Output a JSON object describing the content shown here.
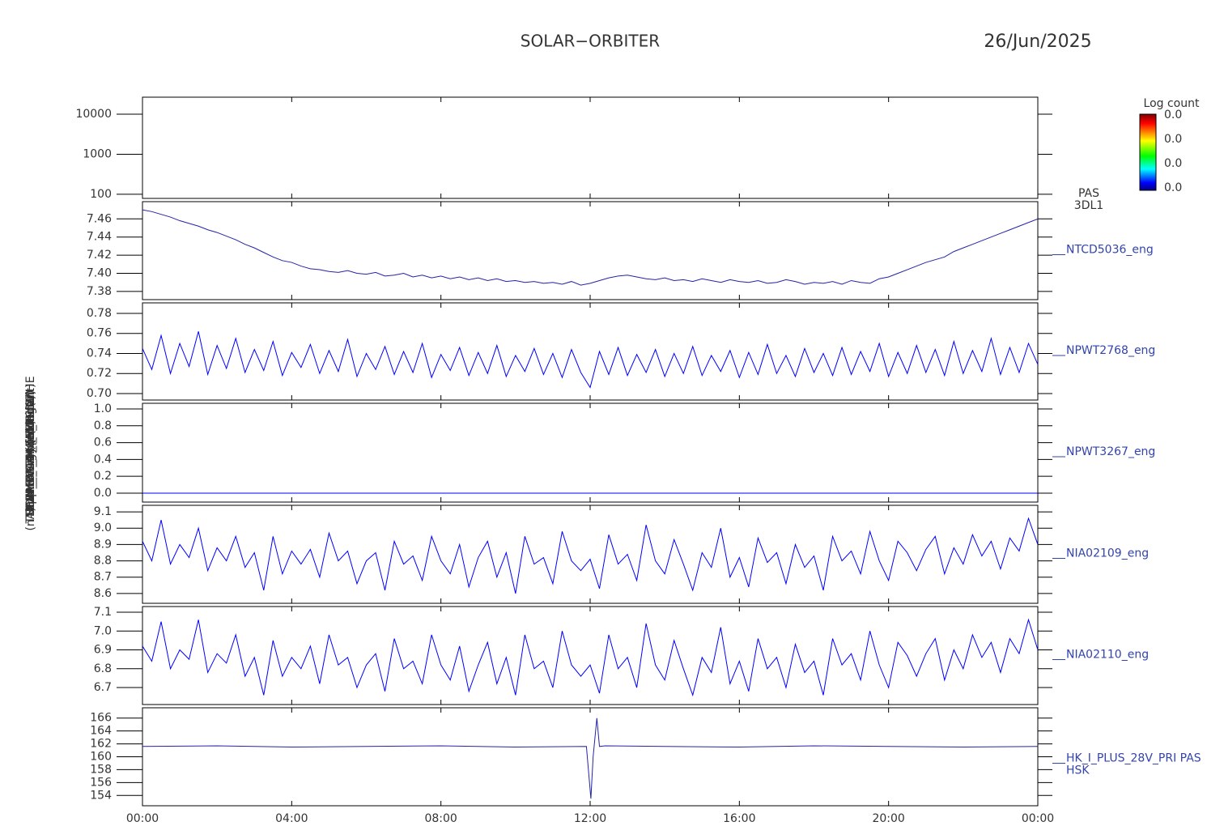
{
  "title": "SOLAR−ORBITER",
  "date": "26/Jun/2025",
  "colorbar": {
    "label": "Log count",
    "tick_labels": [
      "0.0",
      "0.0",
      "0.0",
      "0.0"
    ]
  },
  "xticks": [
    {
      "value": 0,
      "label": "00:00"
    },
    {
      "value": 4,
      "label": "04:00"
    },
    {
      "value": 8,
      "label": "08:00"
    },
    {
      "value": 12,
      "label": "12:00"
    },
    {
      "value": 16,
      "label": "16:00"
    },
    {
      "value": 20,
      "label": "20:00"
    },
    {
      "value": 24,
      "label": "00:00"
    }
  ],
  "xlim": [
    0,
    24
  ],
  "chart_data": [
    {
      "type": "spectrogram",
      "instrument": "PAS",
      "product": "3DL1",
      "ylabel": "Energy (eV)",
      "log_scale": true,
      "ylim": [
        79,
        26600
      ],
      "yticks": [
        100,
        1000,
        10000
      ]
    },
    {
      "type": "line",
      "ylabel": "Approx Temp (DegC)",
      "ylim": [
        7.371,
        7.479
      ],
      "yticks": [
        7.38,
        {
          "value": 7.4,
          "label": "7.40"
        },
        7.42,
        7.44,
        7.46
      ],
      "x": [
        0,
        0.25,
        0.5,
        0.75,
        1,
        1.25,
        1.5,
        1.75,
        2,
        2.25,
        2.5,
        2.75,
        3,
        3.25,
        3.5,
        3.75,
        4,
        4.25,
        4.5,
        4.75,
        5,
        5.25,
        5.5,
        5.75,
        6,
        6.25,
        6.5,
        6.75,
        7,
        7.25,
        7.5,
        7.75,
        8,
        8.25,
        8.5,
        8.75,
        9,
        9.25,
        9.5,
        9.75,
        10,
        10.25,
        10.5,
        10.75,
        11,
        11.25,
        11.5,
        11.75,
        12,
        12.25,
        12.5,
        12.75,
        13,
        13.25,
        13.5,
        13.75,
        14,
        14.25,
        14.5,
        14.75,
        15,
        15.25,
        15.5,
        15.75,
        16,
        16.25,
        16.5,
        16.75,
        17,
        17.25,
        17.5,
        17.75,
        18,
        18.25,
        18.5,
        18.75,
        19,
        19.25,
        19.5,
        19.75,
        20,
        20.25,
        20.5,
        20.75,
        21,
        21.25,
        21.5,
        21.75,
        22,
        22.25,
        22.5,
        22.75,
        23,
        23.25,
        23.5,
        23.75,
        24
      ],
      "series": [
        {
          "name": "NTCD5036_eng",
          "color": "#2323a8",
          "values": [
            7.47,
            7.468,
            7.465,
            7.462,
            7.458,
            7.455,
            7.452,
            7.448,
            7.445,
            7.441,
            7.437,
            7.432,
            7.428,
            7.423,
            7.418,
            7.414,
            7.412,
            7.408,
            7.405,
            7.404,
            7.402,
            7.401,
            7.403,
            7.4,
            7.399,
            7.401,
            7.397,
            7.398,
            7.4,
            7.396,
            7.398,
            7.395,
            7.397,
            7.394,
            7.396,
            7.393,
            7.395,
            7.392,
            7.394,
            7.391,
            7.392,
            7.39,
            7.391,
            7.389,
            7.39,
            7.388,
            7.391,
            7.387,
            7.389,
            7.392,
            7.395,
            7.397,
            7.398,
            7.396,
            7.394,
            7.393,
            7.395,
            7.392,
            7.393,
            7.391,
            7.394,
            7.392,
            7.39,
            7.393,
            7.391,
            7.39,
            7.392,
            7.389,
            7.39,
            7.393,
            7.391,
            7.388,
            7.39,
            7.389,
            7.391,
            7.388,
            7.392,
            7.39,
            7.389,
            7.394,
            7.396,
            7.4,
            7.404,
            7.408,
            7.412,
            7.415,
            7.418,
            7.424,
            7.428,
            7.432,
            7.436,
            7.44,
            7.444,
            7.448,
            7.452,
            7.456,
            7.46
          ]
        }
      ]
    },
    {
      "type": "line",
      "ylabel": "SWA-TWTA_TEMP (V)",
      "ylim": [
        0.6935,
        0.7905
      ],
      "yticks": [
        {
          "value": 0.7,
          "label": "0.70"
        },
        0.72,
        0.74,
        0.76,
        0.78
      ],
      "x": [
        0,
        0.25,
        0.5,
        0.75,
        1,
        1.25,
        1.5,
        1.75,
        2,
        2.25,
        2.5,
        2.75,
        3,
        3.25,
        3.5,
        3.75,
        4,
        4.25,
        4.5,
        4.75,
        5,
        5.25,
        5.5,
        5.75,
        6,
        6.25,
        6.5,
        6.75,
        7,
        7.25,
        7.5,
        7.75,
        8,
        8.25,
        8.5,
        8.75,
        9,
        9.25,
        9.5,
        9.75,
        10,
        10.25,
        10.5,
        10.75,
        11,
        11.25,
        11.5,
        11.75,
        12,
        12.25,
        12.5,
        12.75,
        13,
        13.25,
        13.5,
        13.75,
        14,
        14.25,
        14.5,
        14.75,
        15,
        15.25,
        15.5,
        15.75,
        16,
        16.25,
        16.5,
        16.75,
        17,
        17.25,
        17.5,
        17.75,
        18,
        18.25,
        18.5,
        18.75,
        19,
        19.25,
        19.5,
        19.75,
        20,
        20.25,
        20.5,
        20.75,
        21,
        21.25,
        21.5,
        21.75,
        22,
        22.25,
        22.5,
        22.75,
        23,
        23.25,
        23.5,
        23.75,
        24
      ],
      "series": [
        {
          "name": "NPWT2768_eng",
          "color": "#0000ff",
          "values": [
            0.745,
            0.724,
            0.758,
            0.72,
            0.75,
            0.727,
            0.762,
            0.719,
            0.748,
            0.725,
            0.755,
            0.721,
            0.744,
            0.723,
            0.752,
            0.718,
            0.741,
            0.726,
            0.749,
            0.72,
            0.743,
            0.722,
            0.754,
            0.717,
            0.74,
            0.724,
            0.747,
            0.719,
            0.742,
            0.721,
            0.75,
            0.716,
            0.739,
            0.723,
            0.746,
            0.718,
            0.741,
            0.72,
            0.748,
            0.717,
            0.738,
            0.722,
            0.745,
            0.719,
            0.74,
            0.716,
            0.744,
            0.721,
            0.706,
            0.742,
            0.719,
            0.746,
            0.718,
            0.739,
            0.721,
            0.744,
            0.717,
            0.74,
            0.72,
            0.747,
            0.718,
            0.738,
            0.722,
            0.743,
            0.716,
            0.741,
            0.719,
            0.749,
            0.72,
            0.738,
            0.717,
            0.745,
            0.721,
            0.74,
            0.718,
            0.746,
            0.719,
            0.742,
            0.722,
            0.75,
            0.717,
            0.741,
            0.72,
            0.748,
            0.721,
            0.744,
            0.718,
            0.752,
            0.72,
            0.743,
            0.722,
            0.755,
            0.719,
            0.746,
            0.721,
            0.75,
            0.729
          ]
        }
      ]
    },
    {
      "type": "line",
      "ylabel": "SWA-EAS_HV_MON (V)",
      "ylim": [
        -0.106,
        1.067
      ],
      "yticks": [
        {
          "value": 0,
          "label": "0.0"
        },
        0.2,
        0.4,
        0.6,
        0.8,
        {
          "value": 1,
          "label": "1.0"
        }
      ],
      "x": [
        0,
        24
      ],
      "series": [
        {
          "name": "NPWT3267_eng",
          "color": "#0000ff",
          "values": [
            0,
            0
          ]
        }
      ]
    },
    {
      "type": "line",
      "ylabel": "THERM_CA4 (nominal)",
      "ylim": [
        8.54,
        9.14
      ],
      "yticks": [
        8.6,
        8.7,
        8.8,
        8.9,
        {
          "value": 9,
          "label": "9.0"
        },
        9.1
      ],
      "x": [
        0,
        0.25,
        0.5,
        0.75,
        1,
        1.25,
        1.5,
        1.75,
        2,
        2.25,
        2.5,
        2.75,
        3,
        3.25,
        3.5,
        3.75,
        4,
        4.25,
        4.5,
        4.75,
        5,
        5.25,
        5.5,
        5.75,
        6,
        6.25,
        6.5,
        6.75,
        7,
        7.25,
        7.5,
        7.75,
        8,
        8.25,
        8.5,
        8.75,
        9,
        9.25,
        9.5,
        9.75,
        10,
        10.25,
        10.5,
        10.75,
        11,
        11.25,
        11.5,
        11.75,
        12,
        12.25,
        12.5,
        12.75,
        13,
        13.25,
        13.5,
        13.75,
        14,
        14.25,
        14.5,
        14.75,
        15,
        15.25,
        15.5,
        15.75,
        16,
        16.25,
        16.5,
        16.75,
        17,
        17.25,
        17.5,
        17.75,
        18,
        18.25,
        18.5,
        18.75,
        19,
        19.25,
        19.5,
        19.75,
        20,
        20.25,
        20.5,
        20.75,
        21,
        21.25,
        21.5,
        21.75,
        22,
        22.25,
        22.5,
        22.75,
        23,
        23.25,
        23.5,
        23.75,
        24
      ],
      "series": [
        {
          "name": "NIA02109_eng",
          "color": "#0000ff",
          "values": [
            8.92,
            8.8,
            9.05,
            8.78,
            8.9,
            8.82,
            9.0,
            8.74,
            8.88,
            8.8,
            8.95,
            8.76,
            8.85,
            8.62,
            8.95,
            8.72,
            8.86,
            8.78,
            8.87,
            8.7,
            8.97,
            8.8,
            8.86,
            8.66,
            8.8,
            8.85,
            8.62,
            8.92,
            8.78,
            8.83,
            8.68,
            8.95,
            8.8,
            8.72,
            8.9,
            8.64,
            8.82,
            8.92,
            8.7,
            8.85,
            8.6,
            8.95,
            8.78,
            8.82,
            8.66,
            8.98,
            8.8,
            8.74,
            8.81,
            8.63,
            8.96,
            8.78,
            8.84,
            8.68,
            9.02,
            8.8,
            8.72,
            8.93,
            8.78,
            8.62,
            8.85,
            8.76,
            9.0,
            8.7,
            8.82,
            8.64,
            8.94,
            8.79,
            8.85,
            8.66,
            8.9,
            8.76,
            8.83,
            8.62,
            8.95,
            8.8,
            8.86,
            8.72,
            8.98,
            8.8,
            8.68,
            8.92,
            8.85,
            8.74,
            8.87,
            8.95,
            8.72,
            8.88,
            8.78,
            8.96,
            8.83,
            8.92,
            8.75,
            8.94,
            8.86,
            9.06,
            8.9
          ]
        }
      ]
    },
    {
      "type": "line",
      "ylabel": "THERM_CA4 (redundant)",
      "ylim": [
        6.61,
        7.13
      ],
      "yticks": [
        6.7,
        6.8,
        6.9,
        {
          "value": 7,
          "label": "7.0"
        },
        7.1
      ],
      "x": [
        0,
        0.25,
        0.5,
        0.75,
        1,
        1.25,
        1.5,
        1.75,
        2,
        2.25,
        2.5,
        2.75,
        3,
        3.25,
        3.5,
        3.75,
        4,
        4.25,
        4.5,
        4.75,
        5,
        5.25,
        5.5,
        5.75,
        6,
        6.25,
        6.5,
        6.75,
        7,
        7.25,
        7.5,
        7.75,
        8,
        8.25,
        8.5,
        8.75,
        9,
        9.25,
        9.5,
        9.75,
        10,
        10.25,
        10.5,
        10.75,
        11,
        11.25,
        11.5,
        11.75,
        12,
        12.25,
        12.5,
        12.75,
        13,
        13.25,
        13.5,
        13.75,
        14,
        14.25,
        14.5,
        14.75,
        15,
        15.25,
        15.5,
        15.75,
        16,
        16.25,
        16.5,
        16.75,
        17,
        17.25,
        17.5,
        17.75,
        18,
        18.25,
        18.5,
        18.75,
        19,
        19.25,
        19.5,
        19.75,
        20,
        20.25,
        20.5,
        20.75,
        21,
        21.25,
        21.5,
        21.75,
        22,
        22.25,
        22.5,
        22.75,
        23,
        23.25,
        23.5,
        23.75,
        24
      ],
      "series": [
        {
          "name": "NIA02110_eng",
          "color": "#0000ff",
          "values": [
            6.92,
            6.84,
            7.05,
            6.8,
            6.9,
            6.85,
            7.06,
            6.78,
            6.88,
            6.83,
            6.98,
            6.76,
            6.86,
            6.66,
            6.95,
            6.76,
            6.86,
            6.8,
            6.92,
            6.72,
            6.98,
            6.82,
            6.86,
            6.7,
            6.82,
            6.88,
            6.68,
            6.96,
            6.8,
            6.84,
            6.72,
            6.98,
            6.82,
            6.74,
            6.92,
            6.68,
            6.82,
            6.94,
            6.72,
            6.86,
            6.66,
            6.98,
            6.8,
            6.84,
            6.7,
            7.0,
            6.82,
            6.76,
            6.82,
            6.67,
            6.98,
            6.8,
            6.86,
            6.7,
            7.04,
            6.82,
            6.74,
            6.95,
            6.8,
            6.66,
            6.86,
            6.78,
            7.02,
            6.72,
            6.84,
            6.68,
            6.96,
            6.8,
            6.86,
            6.7,
            6.93,
            6.78,
            6.84,
            6.66,
            6.96,
            6.82,
            6.88,
            6.74,
            7.0,
            6.82,
            6.7,
            6.94,
            6.87,
            6.76,
            6.88,
            6.96,
            6.74,
            6.9,
            6.8,
            6.98,
            6.86,
            6.94,
            6.78,
            6.96,
            6.88,
            7.06,
            6.9
          ]
        }
      ]
    },
    {
      "type": "line",
      "ylabel": "(nA)DM_HK_IMON_PCDMHE",
      "source": "HSK",
      "ylim": [
        152.4,
        167.6
      ],
      "yticks": [
        154,
        156,
        158,
        160,
        162,
        164,
        166
      ],
      "x": [
        0,
        2,
        4,
        6,
        8,
        10,
        11.9,
        12.02,
        12.08,
        12.18,
        12.25,
        12.4,
        14,
        16,
        18,
        20,
        22,
        24
      ],
      "series": [
        {
          "name": "HK_I_PLUS_28V_PRI PAS",
          "color": "#2323a8",
          "values": [
            161.6,
            161.7,
            161.5,
            161.6,
            161.7,
            161.5,
            161.6,
            153.5,
            160,
            166,
            161.6,
            161.7,
            161.6,
            161.5,
            161.7,
            161.6,
            161.5,
            161.6
          ]
        }
      ]
    }
  ]
}
